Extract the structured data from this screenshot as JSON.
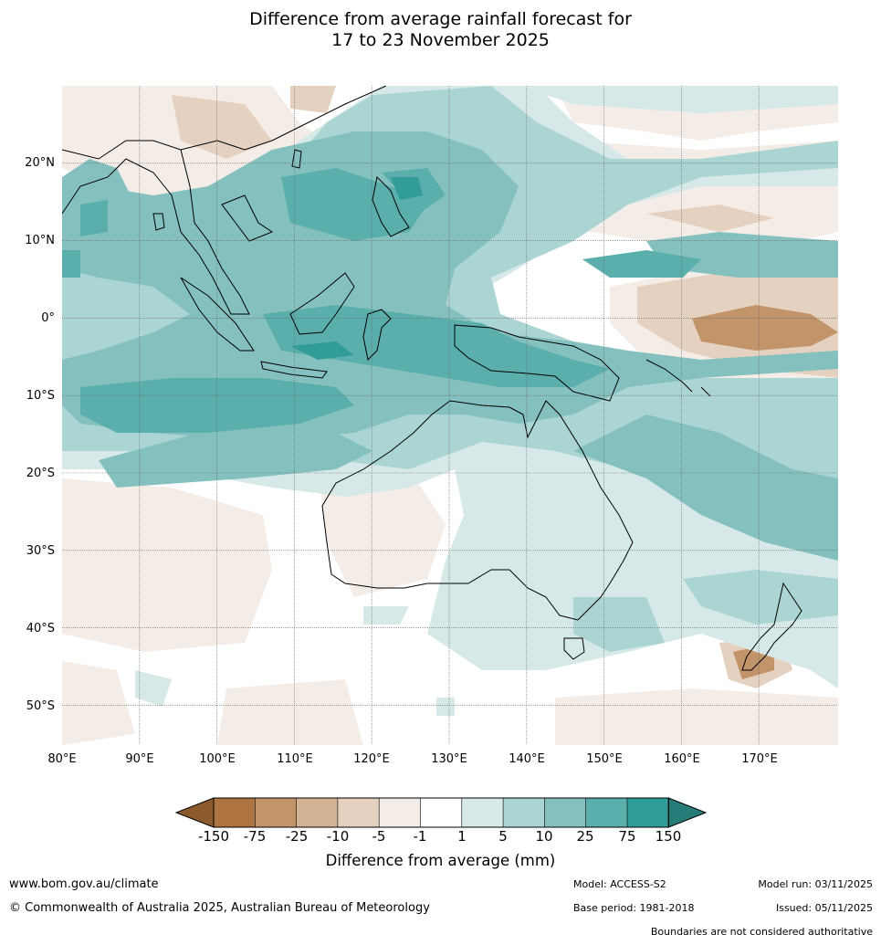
{
  "title_line1": "Difference from average rainfall forecast for",
  "title_line2": "17 to 23 November 2025",
  "lat_labels": [
    "20°N",
    "10°N",
    "0°",
    "10°S",
    "20°S",
    "30°S",
    "40°S",
    "50°S"
  ],
  "lon_labels": [
    "80°E",
    "90°E",
    "100°E",
    "110°E",
    "120°E",
    "130°E",
    "140°E",
    "150°E",
    "160°E",
    "170°E"
  ],
  "colorbar": {
    "title": "Difference from average (mm)",
    "ticks": [
      "-150",
      "-75",
      "-25",
      "-10",
      "-5",
      "-1",
      "1",
      "5",
      "10",
      "25",
      "75",
      "150"
    ],
    "colors": [
      "#8c5a2b",
      "#ad7441",
      "#c2946a",
      "#d4b394",
      "#e5d1c0",
      "#f4ede7",
      "#ffffff",
      "#d6e9e8",
      "#aad5d3",
      "#84c0be",
      "#5aaeac",
      "#319c98",
      "#257c79"
    ]
  },
  "footer": {
    "url": "www.bom.gov.au/climate",
    "copyright": "© Commonwealth of Australia 2025, Australian Bureau of Meteorology",
    "model": "Model: ACCESS-S2",
    "base_period": "Base period: 1981-2018",
    "model_run": "Model run: 03/11/2025",
    "issued": "Issued: 05/11/2025",
    "disclaimer": "Boundaries are not considered authoritative"
  }
}
